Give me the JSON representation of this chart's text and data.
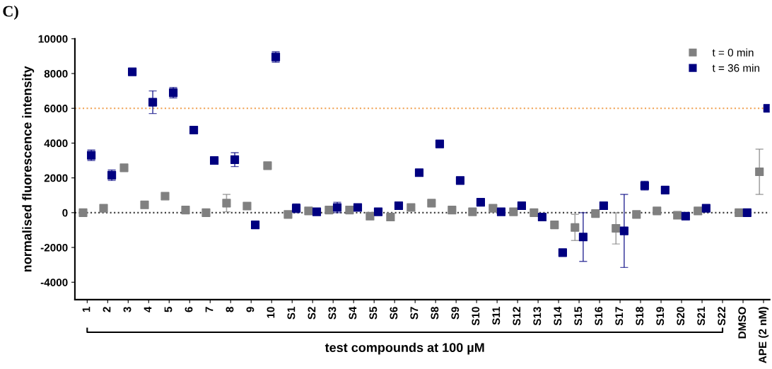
{
  "chart_data": {
    "type": "scatter",
    "ylabel": "normalised fluorescence intensity",
    "categories": [
      "1",
      "2",
      "3",
      "4",
      "5",
      "6",
      "7",
      "8",
      "9",
      "10",
      "S1",
      "S2",
      "S3",
      "S4",
      "S5",
      "S6",
      "S7",
      "S8",
      "S9",
      "S10",
      "S11",
      "S12",
      "S13",
      "S14",
      "S15",
      "S16",
      "S17",
      "S18",
      "S19",
      "S20",
      "S21",
      "S22",
      "DMSO",
      "APE (2 nM)"
    ],
    "series": [
      {
        "name": "t = 0 min",
        "color": "#808080",
        "values": [
          0,
          250,
          2580,
          450,
          950,
          150,
          0,
          550,
          380,
          2700,
          -100,
          100,
          150,
          150,
          -200,
          -250,
          300,
          550,
          150,
          50,
          250,
          50,
          0,
          -700,
          -850,
          -50,
          -900,
          -100,
          100,
          -150,
          100,
          null,
          0,
          2350
        ],
        "errors": [
          null,
          null,
          null,
          null,
          null,
          null,
          null,
          500,
          null,
          null,
          null,
          null,
          null,
          null,
          null,
          null,
          null,
          null,
          null,
          null,
          null,
          null,
          null,
          null,
          750,
          null,
          900,
          null,
          null,
          null,
          null,
          null,
          null,
          1300
        ]
      },
      {
        "name": "t = 36 min",
        "color": "#000080",
        "values": [
          3300,
          2150,
          8100,
          6350,
          6900,
          4750,
          3000,
          3050,
          -700,
          8950,
          250,
          50,
          300,
          300,
          50,
          400,
          2300,
          3950,
          1850,
          600,
          50,
          400,
          -250,
          -2300,
          -1400,
          400,
          -1050,
          1550,
          1300,
          -200,
          250,
          null,
          0,
          6000
        ],
        "errors": [
          300,
          300,
          null,
          650,
          300,
          null,
          null,
          400,
          null,
          300,
          250,
          null,
          300,
          null,
          null,
          null,
          null,
          null,
          200,
          null,
          null,
          200,
          null,
          null,
          1400,
          null,
          2100,
          250,
          null,
          null,
          null,
          null,
          null,
          null
        ]
      }
    ],
    "ylim": [
      -5000,
      10000
    ],
    "yticks": [
      -4000,
      -2000,
      0,
      2000,
      4000,
      6000,
      8000,
      10000
    ],
    "ref_lines": [
      {
        "axis": "y",
        "value": 0,
        "color": "#404040",
        "line_style": "dotted"
      },
      {
        "axis": "y",
        "value": 6000,
        "color": "#f0a050",
        "line_style": "dotted"
      }
    ],
    "annotations": [
      "C)",
      "test compounds at 100 µM"
    ],
    "marker": "square",
    "legend": "top right",
    "grid": false
  }
}
